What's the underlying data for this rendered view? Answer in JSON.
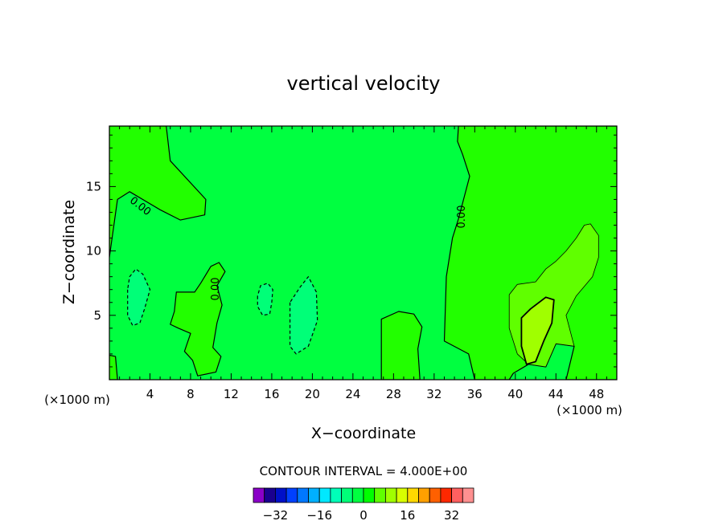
{
  "chart_data": {
    "type": "heatmap",
    "title": "vertical velocity",
    "xlabel": "X−coordinate",
    "ylabel": "Z−coordinate",
    "x_unit_left": "(×1000 m)",
    "x_unit_right": "(×1000 m)",
    "xlim": [
      0,
      50
    ],
    "ylim": [
      0,
      19.7
    ],
    "x_ticks": [
      4,
      8,
      12,
      16,
      20,
      24,
      28,
      32,
      36,
      40,
      44,
      48
    ],
    "y_ticks": [
      5,
      10,
      15
    ],
    "contour_interval_text": "CONTOUR INTERVAL = 4.000E+00",
    "contour_labels": [
      "0.00",
      "0.00",
      "0.00"
    ],
    "colorbar": {
      "colors": [
        "#8a00c8",
        "#1a0090",
        "#0010c8",
        "#0040ff",
        "#0078ff",
        "#00b0ff",
        "#00e8ff",
        "#00ffb8",
        "#00ff78",
        "#00ff40",
        "#00ff00",
        "#60ff00",
        "#a0ff00",
        "#d8ff00",
        "#ffd800",
        "#ffa000",
        "#ff6000",
        "#ff2800",
        "#ff6060",
        "#ff9090"
      ],
      "tick_labels": [
        "−32",
        "−16",
        "0",
        "16",
        "32"
      ],
      "tick_values": [
        -32,
        -16,
        0,
        16,
        32
      ],
      "range": [
        -40,
        40
      ]
    },
    "regions": [
      {
        "name": "background",
        "value": 0,
        "color": "#00ff40"
      },
      {
        "name": "upper-left-positive",
        "value": 2,
        "color": "#22ff00",
        "points": [
          [
            0,
            19.7
          ],
          [
            5.6,
            19.7
          ],
          [
            6,
            17
          ],
          [
            9.5,
            14
          ],
          [
            9.4,
            12.8
          ],
          [
            7,
            12.4
          ],
          [
            5,
            13.2
          ],
          [
            2,
            14.6
          ],
          [
            0.8,
            14
          ],
          [
            0,
            9.5
          ]
        ]
      },
      {
        "name": "right-positive",
        "value": 2,
        "color": "#22ff00",
        "points": [
          [
            34.4,
            19.7
          ],
          [
            50,
            19.7
          ],
          [
            50,
            0
          ],
          [
            45,
            0
          ],
          [
            45.8,
            2.6
          ],
          [
            44,
            2.8
          ],
          [
            43,
            1
          ],
          [
            41.3,
            1.2
          ],
          [
            39.8,
            0.5
          ],
          [
            39.4,
            0
          ],
          [
            36,
            0
          ],
          [
            35.4,
            2
          ],
          [
            33,
            3
          ],
          [
            33.2,
            8
          ],
          [
            33.8,
            11
          ],
          [
            34.4,
            12.5
          ],
          [
            35.5,
            15.8
          ],
          [
            34.8,
            17.5
          ],
          [
            34.3,
            18.5
          ]
        ]
      },
      {
        "name": "mid-left-positive",
        "value": 2,
        "color": "#22ff00",
        "points": [
          [
            6,
            4.3
          ],
          [
            6.4,
            5.3
          ],
          [
            6.6,
            6.8
          ],
          [
            8.4,
            6.8
          ],
          [
            9,
            7.5
          ],
          [
            10,
            8.8
          ],
          [
            10.8,
            9.1
          ],
          [
            11.4,
            8.4
          ],
          [
            10.6,
            7.3
          ],
          [
            11.1,
            5.8
          ],
          [
            10.6,
            4.4
          ],
          [
            10.2,
            2.5
          ],
          [
            11,
            1.8
          ],
          [
            10.5,
            0.6
          ],
          [
            8.7,
            0.3
          ],
          [
            8.2,
            1.5
          ],
          [
            7.4,
            2.2
          ],
          [
            8,
            3.6
          ],
          [
            6.8,
            4
          ]
        ]
      },
      {
        "name": "bottom-center-positive",
        "value": 2,
        "color": "#22ff00",
        "points": [
          [
            26.8,
            0
          ],
          [
            26.8,
            4.7
          ],
          [
            28.5,
            5.3
          ],
          [
            30,
            5.1
          ],
          [
            30.8,
            4.1
          ],
          [
            30.4,
            2.4
          ],
          [
            30.6,
            0
          ]
        ]
      },
      {
        "name": "bottom-left-positive",
        "value": 2,
        "color": "#22ff00",
        "points": [
          [
            0,
            0
          ],
          [
            0,
            1.9
          ],
          [
            0.6,
            1.8
          ],
          [
            0.8,
            0
          ]
        ]
      },
      {
        "name": "cell-outer",
        "value": 6,
        "color": "#60ff00",
        "points": [
          [
            39.4,
            6.6
          ],
          [
            39.4,
            4
          ],
          [
            40.2,
            2
          ],
          [
            41.3,
            1.2
          ],
          [
            43,
            1
          ],
          [
            44,
            2.8
          ],
          [
            45.8,
            2.6
          ],
          [
            45,
            5
          ],
          [
            46,
            6.5
          ],
          [
            47.6,
            8
          ],
          [
            48.2,
            9.5
          ],
          [
            48.2,
            11.2
          ],
          [
            47.4,
            12.1
          ],
          [
            46.8,
            12
          ],
          [
            46,
            11
          ],
          [
            45,
            10
          ],
          [
            44,
            9.2
          ],
          [
            43,
            8.6
          ],
          [
            42,
            7.6
          ],
          [
            40.2,
            7.4
          ]
        ]
      },
      {
        "name": "cell-inner",
        "value": 10,
        "color": "#a0ff00",
        "points": [
          [
            40.6,
            4.8
          ],
          [
            41.5,
            5.5
          ],
          [
            43,
            6.4
          ],
          [
            43.8,
            6.2
          ],
          [
            43.6,
            4.4
          ],
          [
            42.8,
            3
          ],
          [
            42,
            1.4
          ],
          [
            41.1,
            1.2
          ],
          [
            40.6,
            2.6
          ]
        ]
      },
      {
        "name": "negative-1",
        "value": -2,
        "color": "#00ff78",
        "points": [
          [
            1.8,
            7
          ],
          [
            1.8,
            5
          ],
          [
            2.3,
            4.2
          ],
          [
            3,
            4.4
          ],
          [
            3.5,
            5.6
          ],
          [
            4,
            7
          ],
          [
            3.3,
            8.2
          ],
          [
            2.6,
            8.6
          ],
          [
            2,
            8
          ]
        ]
      },
      {
        "name": "negative-2",
        "value": -2,
        "color": "#00ff78",
        "points": [
          [
            14.6,
            6.5
          ],
          [
            14.6,
            5.7
          ],
          [
            15.1,
            5
          ],
          [
            15.8,
            5.1
          ],
          [
            16,
            6
          ],
          [
            16.1,
            7
          ],
          [
            15.6,
            7.5
          ],
          [
            14.9,
            7.3
          ]
        ]
      },
      {
        "name": "negative-3",
        "value": -2,
        "color": "#00ff78",
        "points": [
          [
            17.8,
            6
          ],
          [
            17.8,
            2.6
          ],
          [
            18.4,
            2
          ],
          [
            19.6,
            2.6
          ],
          [
            20.5,
            4.6
          ],
          [
            20.4,
            6.8
          ],
          [
            19.6,
            8
          ],
          [
            18.8,
            7.2
          ]
        ]
      }
    ]
  }
}
